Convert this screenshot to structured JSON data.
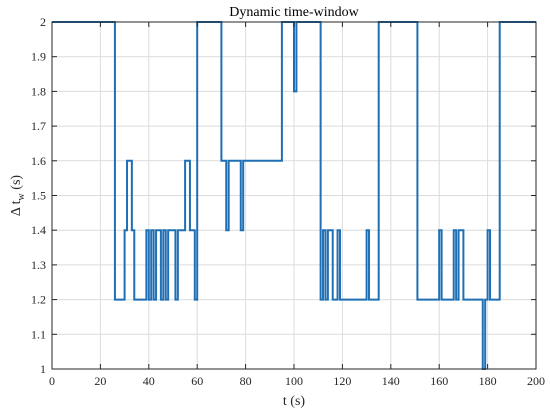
{
  "chart_data": {
    "type": "line",
    "title": "Dynamic time-window",
    "xlabel": "t (s)",
    "ylabel_main": "Δ t",
    "ylabel_sub": "w",
    "ylabel_unit": " (s)",
    "xlim": [
      0,
      200
    ],
    "ylim": [
      1,
      2
    ],
    "xticks": [
      0,
      20,
      40,
      60,
      80,
      100,
      120,
      140,
      160,
      180,
      200
    ],
    "yticks": [
      1,
      1.1,
      1.2,
      1.3,
      1.4,
      1.5,
      1.6,
      1.7,
      1.8,
      1.9,
      2
    ],
    "ytick_labels": [
      "1",
      "1.1",
      "1.2",
      "1.3",
      "1.4",
      "1.5",
      "1.6",
      "1.7",
      "1.8",
      "1.9",
      "2"
    ],
    "grid": true,
    "line_color": "#1f6fb4",
    "series": [
      {
        "x": [
          0,
          26,
          26,
          30,
          30,
          31,
          31,
          33,
          33,
          34,
          34,
          39,
          39,
          40,
          40,
          41,
          41,
          42,
          42,
          43,
          43,
          45,
          45,
          46,
          46,
          47,
          47,
          48,
          48,
          51,
          51,
          52,
          52,
          55,
          55,
          57,
          57,
          59,
          59,
          60,
          60,
          70,
          70,
          72,
          72,
          73,
          73,
          74,
          74,
          78,
          78,
          79,
          79,
          80,
          80,
          95,
          95,
          100,
          100,
          101,
          101,
          111,
          111,
          112,
          112,
          113,
          113,
          114,
          114,
          116,
          116,
          118,
          118,
          119,
          119,
          120,
          120,
          130,
          130,
          131,
          131,
          135,
          135,
          151,
          151,
          159,
          159,
          160,
          160,
          161,
          161,
          166,
          166,
          167,
          167,
          168,
          168,
          170,
          170,
          171,
          171,
          178,
          178,
          179,
          179,
          180,
          180,
          181,
          181,
          185,
          185,
          200
        ],
        "y": [
          2,
          2,
          1.2,
          1.2,
          1.4,
          1.4,
          1.6,
          1.6,
          1.4,
          1.4,
          1.2,
          1.2,
          1.4,
          1.4,
          1.2,
          1.2,
          1.4,
          1.4,
          1.2,
          1.2,
          1.4,
          1.4,
          1.2,
          1.2,
          1.4,
          1.4,
          1.2,
          1.2,
          1.4,
          1.4,
          1.2,
          1.2,
          1.4,
          1.4,
          1.6,
          1.6,
          1.4,
          1.4,
          1.2,
          1.2,
          2,
          2,
          1.6,
          1.6,
          1.4,
          1.4,
          1.6,
          1.6,
          1.6,
          1.6,
          1.4,
          1.4,
          1.6,
          1.6,
          1.6,
          1.6,
          2,
          2,
          1.8,
          1.8,
          2,
          2,
          1.2,
          1.2,
          1.4,
          1.4,
          1.2,
          1.2,
          1.4,
          1.4,
          1.2,
          1.2,
          1.4,
          1.4,
          1.2,
          1.2,
          1.2,
          1.2,
          1.4,
          1.4,
          1.2,
          1.2,
          2,
          2,
          1.2,
          1.2,
          1.2,
          1.2,
          1.4,
          1.4,
          1.2,
          1.2,
          1.4,
          1.4,
          1.2,
          1.2,
          1.4,
          1.4,
          1.2,
          1.2,
          1.2,
          1.2,
          1.0,
          1.0,
          1.2,
          1.2,
          1.4,
          1.4,
          1.2,
          1.2,
          2,
          2
        ]
      }
    ]
  }
}
